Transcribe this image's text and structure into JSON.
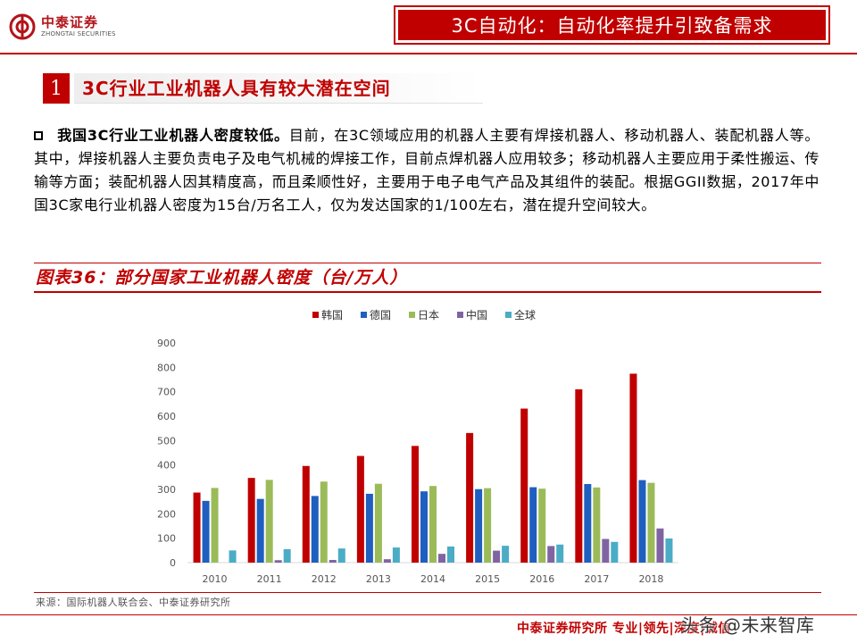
{
  "header": {
    "logo_cn": "中泰证券",
    "logo_en": "ZHONGTAI SECURITIES",
    "title": "3C自动化：自动化率提升引致备需求"
  },
  "section": {
    "number": "1",
    "title": "3C行业工业机器人具有较大潜在空间"
  },
  "paragraph": {
    "bold": "我国3C行业工业机器人密度较低。",
    "text": "目前，在3C领域应用的机器人主要有焊接机器人、移动机器人、装配机器人等。其中，焊接机器人主要负责电子及电气机械的焊接工作，目前点焊机器人应用较多；移动机器人主要应用于柔性搬运、传输等方面；装配机器人因其精度高，而且柔顺性好，主要用于电子电气产品及其组件的装配。根据GGII数据，2017年中国3C家电行业机器人密度为15台/万名工人，仅为发达国家的1/100左右，潜在提升空间较大。"
  },
  "figure": {
    "caption": "图表36：部分国家工业机器人密度（台/万人）"
  },
  "chart_data": {
    "type": "bar",
    "title": "",
    "xlabel": "",
    "ylabel": "",
    "ylim": [
      0,
      900
    ],
    "yticks": [
      0,
      100,
      200,
      300,
      400,
      500,
      600,
      700,
      800,
      900
    ],
    "legend_position": "top",
    "grid": false,
    "categories": [
      "2010",
      "2011",
      "2012",
      "2013",
      "2014",
      "2015",
      "2016",
      "2017",
      "2018"
    ],
    "series": [
      {
        "name": "韩国",
        "color": "#c00000",
        "values": [
          287,
          347,
          396,
          437,
          478,
          531,
          631,
          710,
          774
        ]
      },
      {
        "name": "德国",
        "color": "#1f5fbf",
        "values": [
          253,
          261,
          273,
          282,
          292,
          301,
          309,
          322,
          338
        ]
      },
      {
        "name": "日本",
        "color": "#9bbb59",
        "values": [
          306,
          339,
          332,
          323,
          314,
          305,
          303,
          308,
          327
        ]
      },
      {
        "name": "中国",
        "color": "#8064a2",
        "values": [
          0,
          10,
          11,
          14,
          36,
          49,
          68,
          97,
          140
        ]
      },
      {
        "name": "全球",
        "color": "#4bacc6",
        "values": [
          50,
          55,
          58,
          62,
          66,
          69,
          74,
          85,
          99
        ]
      }
    ]
  },
  "source": "来源：国际机器人联合会、中泰证券研究所",
  "footer": {
    "tagline": "中泰证券研究所 专业|领先|深度|诚信",
    "watermark": "头条 @未来智库"
  }
}
